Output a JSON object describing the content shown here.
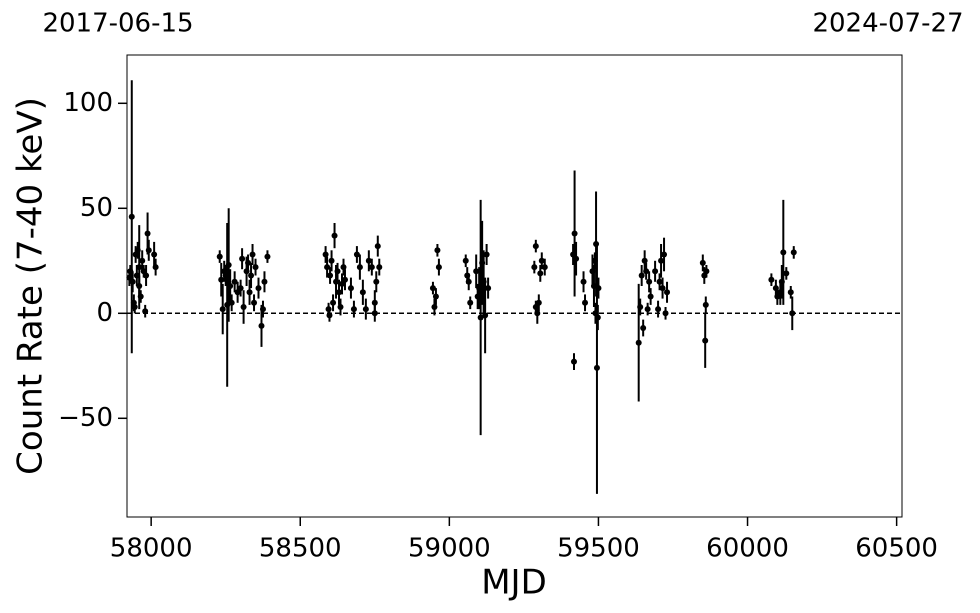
{
  "chart_data": {
    "type": "scatter",
    "annotations": [
      "2017-06-15",
      "2024-07-27"
    ],
    "x_label": "MJD",
    "y_label": "Count Rate (7-40 keV)",
    "xlim": [
      57919,
      60518
    ],
    "ylim": [
      -97,
      123
    ],
    "xticks": [
      58000,
      58500,
      59000,
      59500,
      60000,
      60500
    ],
    "yticks": [
      {
        "value": -50,
        "label": "−50"
      },
      0,
      50,
      100
    ],
    "hline": 0,
    "series": [
      {
        "color": "#000000",
        "x": [
          57927,
          57930,
          57935,
          57938,
          57942,
          57945,
          57948,
          57952,
          57955,
          57960,
          57960,
          57965,
          57970,
          57975,
          57980,
          57983,
          57988,
          57992,
          58010,
          58015,
          58230,
          58235,
          58240,
          58245,
          58250,
          58255,
          58260,
          58265,
          58270,
          58280,
          58290,
          58300,
          58305,
          58310,
          58320,
          58325,
          58330,
          58335,
          58340,
          58345,
          58350,
          58360,
          58370,
          58375,
          58380,
          58390,
          58585,
          58590,
          58595,
          58598,
          58600,
          58605,
          58610,
          58615,
          58620,
          58625,
          58630,
          58635,
          58640,
          58645,
          58650,
          58670,
          58680,
          58690,
          58700,
          58710,
          58720,
          58730,
          58740,
          58750,
          58750,
          58755,
          58760,
          58765,
          58945,
          58950,
          58955,
          58960,
          58965,
          59055,
          59060,
          59065,
          59070,
          59090,
          59095,
          59100,
          59105,
          59110,
          59115,
          59120,
          59125,
          59130,
          59285,
          59290,
          59290,
          59295,
          59300,
          59305,
          59310,
          59320,
          59415,
          59418,
          59420,
          59425,
          59450,
          59455,
          59480,
          59485,
          59488,
          59490,
          59492,
          59495,
          59498,
          59500,
          59635,
          59640,
          59645,
          59650,
          59655,
          59660,
          59665,
          59670,
          59675,
          59690,
          59700,
          59705,
          59710,
          59715,
          59720,
          59725,
          59730,
          59850,
          59855,
          59858,
          59860,
          59862,
          60080,
          60095,
          60100,
          60110,
          60115,
          60120,
          60130,
          60145,
          60150,
          60155
        ],
        "values": [
          17,
          20,
          46,
          15,
          5,
          3,
          28,
          18,
          30,
          22,
          13,
          8,
          25,
          20,
          1,
          18,
          38,
          30,
          28,
          22,
          27,
          16,
          2,
          20,
          18,
          4,
          23,
          13,
          5,
          15,
          10,
          12,
          26,
          3,
          20,
          24,
          10,
          18,
          28,
          5,
          22,
          12,
          -6,
          2,
          15,
          27,
          28,
          22,
          2,
          -1,
          18,
          25,
          5,
          37,
          15,
          20,
          10,
          3,
          14,
          22,
          16,
          12,
          2,
          28,
          22,
          10,
          2,
          25,
          22,
          5,
          0,
          15,
          32,
          22,
          12,
          3,
          8,
          30,
          22,
          25,
          18,
          15,
          5,
          20,
          8,
          12,
          -2,
          24,
          15,
          -1,
          28,
          12,
          22,
          32,
          3,
          0,
          5,
          19,
          25,
          22,
          28,
          -23,
          38,
          26,
          15,
          5,
          20,
          13,
          25,
          0,
          33,
          -26,
          -2,
          12,
          -14,
          3,
          18,
          -7,
          25,
          20,
          2,
          15,
          8,
          20,
          2,
          15,
          25,
          12,
          28,
          0,
          10,
          24,
          18,
          -13,
          4,
          20,
          16,
          12,
          8,
          10,
          15,
          29,
          19,
          10,
          0,
          29
        ],
        "errors": [
          4,
          3,
          65,
          5,
          4,
          3,
          4,
          5,
          4,
          20,
          5,
          3,
          5,
          3,
          3,
          5,
          10,
          5,
          6,
          4,
          3,
          8,
          12,
          5,
          5,
          39,
          27,
          8,
          4,
          5,
          5,
          4,
          5,
          8,
          7,
          4,
          6,
          6,
          5,
          4,
          4,
          5,
          10,
          4,
          5,
          3,
          4,
          5,
          3,
          3,
          4,
          5,
          4,
          6,
          8,
          4,
          6,
          4,
          5,
          4,
          5,
          5,
          4,
          4,
          6,
          6,
          5,
          5,
          4,
          6,
          4,
          5,
          5,
          4,
          3,
          4,
          4,
          3,
          4,
          3,
          4,
          4,
          3,
          8,
          6,
          10,
          56,
          20,
          15,
          18,
          5,
          5,
          3,
          3,
          3,
          5,
          4,
          4,
          4,
          4,
          5,
          4,
          30,
          8,
          5,
          4,
          8,
          10,
          4,
          5,
          25,
          60,
          6,
          5,
          28,
          4,
          5,
          4,
          5,
          4,
          3,
          5,
          4,
          5,
          4,
          4,
          8,
          5,
          8,
          3,
          5,
          4,
          4,
          13,
          4,
          3,
          3,
          4,
          4,
          6,
          8,
          25,
          3,
          3,
          8,
          3
        ]
      }
    ]
  }
}
